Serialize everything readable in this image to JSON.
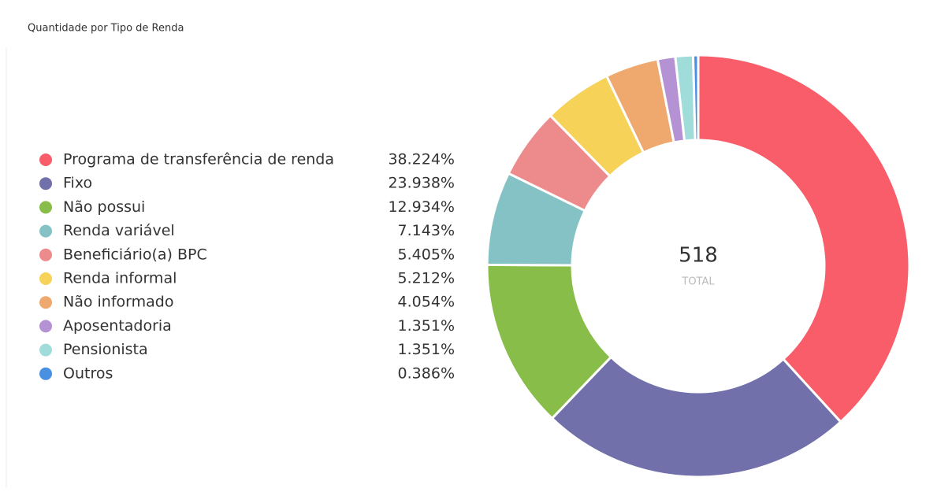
{
  "chart_data": {
    "type": "donut",
    "title": "Quantidade por Tipo de Renda",
    "categories": [
      "Programa de transferência de renda",
      "Fixo",
      "Não possui",
      "Renda variável",
      "Beneficiário(a) BPC",
      "Renda informal",
      "Não informado",
      "Aposentadoria",
      "Pensionista",
      "Outros"
    ],
    "values": [
      38.224,
      23.938,
      12.934,
      7.143,
      5.405,
      5.212,
      4.054,
      1.351,
      1.351,
      0.386
    ],
    "value_labels": [
      "38.224%",
      "23.938%",
      "12.934%",
      "7.143%",
      "5.405%",
      "5.212%",
      "4.054%",
      "1.351%",
      "1.351%",
      "0.386%"
    ],
    "colors": [
      "#f95d6a",
      "#7170aa",
      "#87bd48",
      "#84c2c6",
      "#ec8a8c",
      "#f6d258",
      "#efa96f",
      "#b592d3",
      "#9fdcda",
      "#4a90e2"
    ],
    "total": 518,
    "total_label": "TOTAL"
  }
}
